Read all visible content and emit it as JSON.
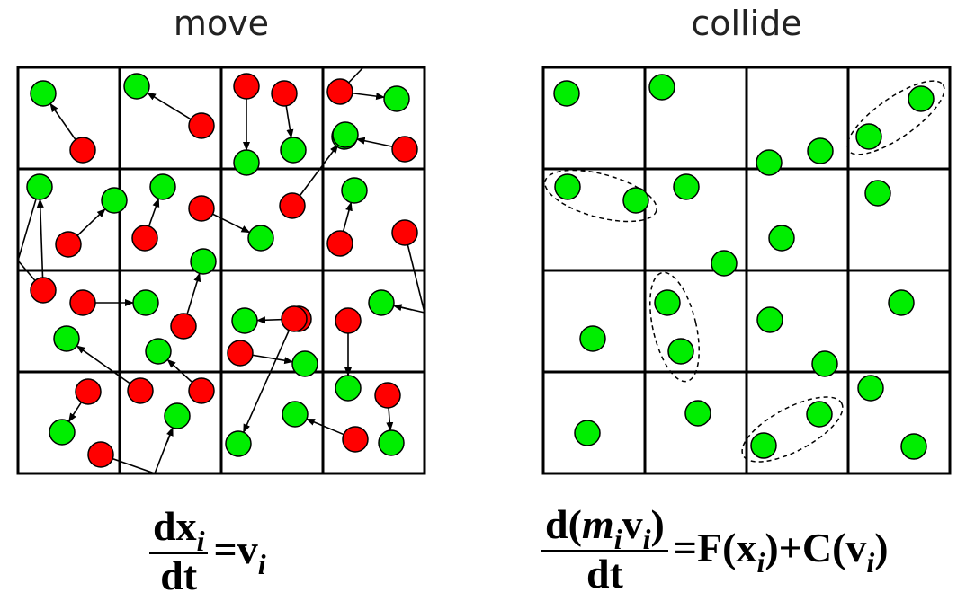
{
  "titles": {
    "move": "move",
    "collide": "collide"
  },
  "colors": {
    "moving": "#ff0000",
    "resting": "#00ee00",
    "grid": "#000000"
  },
  "equations": {
    "move": {
      "num_d": "d",
      "num_var": "x",
      "num_sub": "i",
      "den": "dt",
      "equals": "=",
      "rhs_var": "v",
      "rhs_sub": "i"
    },
    "collide": {
      "num_open": "d(",
      "num_m": "m",
      "num_m_sub": "i",
      "num_v": "v",
      "num_v_sub": "i",
      "num_close": ")",
      "den": "dt",
      "equals": "=",
      "rhs_F": "F(x",
      "rhs_F_sub": "i",
      "rhs_mid": ")+C(v",
      "rhs_C_sub": "i",
      "rhs_end": ")"
    }
  }
}
